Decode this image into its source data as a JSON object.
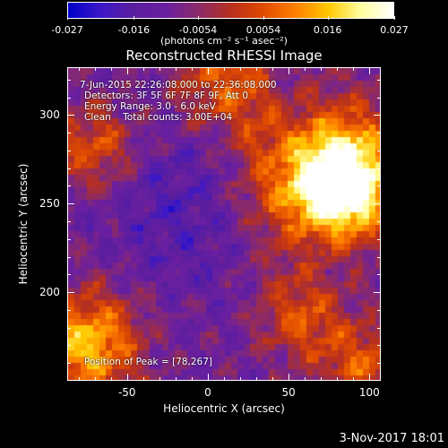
{
  "colorbar": {
    "tick_labels": [
      "-0.027",
      "-0.016",
      "-0.0054",
      "0.0054",
      "0.016",
      "0.027"
    ],
    "tick_values": [
      -0.027,
      -0.016,
      -0.0054,
      0.0054,
      0.016,
      0.027
    ],
    "range": [
      -0.027,
      0.027
    ],
    "units": "(photons cm⁻² s⁻¹ asec⁻²)"
  },
  "title": "Reconstructed RHESSI Image",
  "info": {
    "time_range": "7-Jun-2015 22:26:08.000 to 22:36:08.000",
    "detectors": "Detectors: 3F 5F 6F 7F 8F 9F, Att 0",
    "energy": "Energy Range: 3.0 - 6.0 keV",
    "clean": "Clean    Total counts: 3.00E+04",
    "peak": "Position of Peak = [78,267]"
  },
  "axes": {
    "xlabel": "Heliocentric X (arcsec)",
    "ylabel": "Heliocentric Y (arcsec)",
    "xticks": [
      "-50",
      "0",
      "50",
      "100"
    ],
    "xtick_values": [
      -50,
      0,
      50,
      100
    ],
    "yticks": [
      "200",
      "250",
      "300"
    ],
    "ytick_values": [
      200,
      250,
      300
    ],
    "xlim": [
      -87,
      107
    ],
    "ylim": [
      150,
      327
    ]
  },
  "colors": {
    "colormap": [
      "#0000c8",
      "#3c18c8",
      "#5a1e9e",
      "#6a1fa0",
      "#8a2a6a",
      "#b8301e",
      "#e04a00",
      "#ff8000",
      "#ffc800",
      "#ffffa0",
      "#ffffff"
    ]
  },
  "footer": {
    "date": "3-Nov-2017 18:01"
  },
  "chart_data": {
    "type": "heatmap",
    "title": "Reconstructed RHESSI Image",
    "xlabel": "Heliocentric X (arcsec)",
    "ylabel": "Heliocentric Y (arcsec)",
    "xlim": [
      -87,
      107
    ],
    "ylim": [
      150,
      327
    ],
    "value_range": [
      -0.027,
      0.027
    ],
    "peak_position": [
      78,
      267
    ],
    "peak_value": 0.027
  }
}
